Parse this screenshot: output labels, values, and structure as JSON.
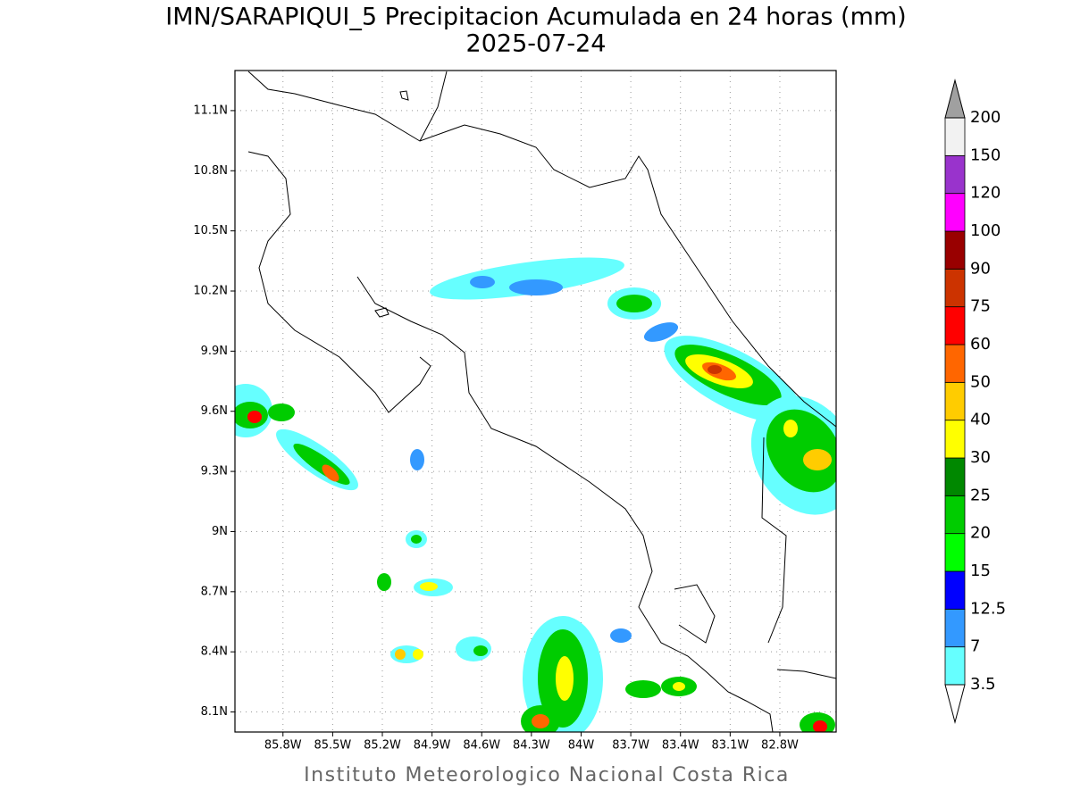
{
  "header": {
    "title": "IMN/SARAPIQUI_5 Precipitacion Acumulada en 24 horas (mm)",
    "subtitle": "2025-07-24"
  },
  "map": {
    "lon_range": [
      -86.09,
      -82.46
    ],
    "lat_range": [
      8.0,
      11.3
    ],
    "lat_ticks": [
      {
        "value": 11.1,
        "label": "11.1N"
      },
      {
        "value": 10.8,
        "label": "10.8N"
      },
      {
        "value": 10.5,
        "label": "10.5N"
      },
      {
        "value": 10.2,
        "label": "10.2N"
      },
      {
        "value": 9.9,
        "label": "9.9N"
      },
      {
        "value": 9.6,
        "label": "9.6N"
      },
      {
        "value": 9.3,
        "label": "9.3N"
      },
      {
        "value": 9.0,
        "label": "9N"
      },
      {
        "value": 8.7,
        "label": "8.7N"
      },
      {
        "value": 8.4,
        "label": "8.4N"
      },
      {
        "value": 8.1,
        "label": "8.1N"
      }
    ],
    "lon_ticks": [
      {
        "value": -85.8,
        "label": "85.8W"
      },
      {
        "value": -85.5,
        "label": "85.5W"
      },
      {
        "value": -85.2,
        "label": "85.2W"
      },
      {
        "value": -84.9,
        "label": "84.9W"
      },
      {
        "value": -84.6,
        "label": "84.6W"
      },
      {
        "value": -84.3,
        "label": "84.3W"
      },
      {
        "value": -84.0,
        "label": "84W"
      },
      {
        "value": -83.7,
        "label": "83.7W"
      },
      {
        "value": -83.4,
        "label": "83.4W"
      },
      {
        "value": -83.1,
        "label": "83.1W"
      },
      {
        "value": -82.8,
        "label": "82.8W"
      }
    ]
  },
  "colorbar": {
    "levels": [
      3.5,
      7,
      12.5,
      15,
      20,
      25,
      30,
      40,
      50,
      60,
      75,
      90,
      100,
      120,
      150,
      200
    ],
    "colors": [
      "#66ffff",
      "#3399ff",
      "#0000ff",
      "#00ff00",
      "#00cc00",
      "#008800",
      "#ffff00",
      "#ffcc00",
      "#ff6600",
      "#ff0000",
      "#cc3300",
      "#990000",
      "#ff00ff",
      "#9933cc",
      "#f2f2f2"
    ],
    "over_color": "#a0a0a0",
    "under_color": "#ffffff"
  },
  "footer": {
    "credit": "Instituto Meteorologico Nacional Costa Rica"
  }
}
